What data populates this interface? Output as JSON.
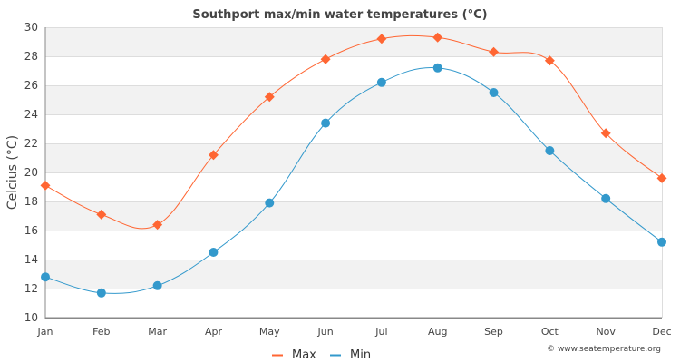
{
  "chart_data": {
    "type": "line",
    "title": "Southport max/min water temperatures (°C)",
    "xlabel": "",
    "ylabel": "Celcius (°C)",
    "categories": [
      "Jan",
      "Feb",
      "Mar",
      "Apr",
      "May",
      "Jun",
      "Jul",
      "Aug",
      "Sep",
      "Oct",
      "Nov",
      "Dec"
    ],
    "ylim": [
      10,
      30
    ],
    "yticks": [
      10,
      12,
      14,
      16,
      18,
      20,
      22,
      24,
      26,
      28,
      30
    ],
    "grid": true,
    "legend_position": "bottom-center",
    "series": [
      {
        "name": "Max",
        "color": "#ff6633",
        "marker": "diamond",
        "values": [
          19.1,
          17.1,
          16.4,
          21.2,
          25.2,
          27.8,
          29.2,
          29.3,
          28.3,
          27.7,
          22.7,
          19.6
        ]
      },
      {
        "name": "Min",
        "color": "#3399cc",
        "marker": "circle",
        "values": [
          12.8,
          11.7,
          12.2,
          14.5,
          17.9,
          23.4,
          26.2,
          27.2,
          25.5,
          21.5,
          18.2,
          15.2
        ]
      }
    ],
    "credit": "© www.seatemperature.org"
  }
}
